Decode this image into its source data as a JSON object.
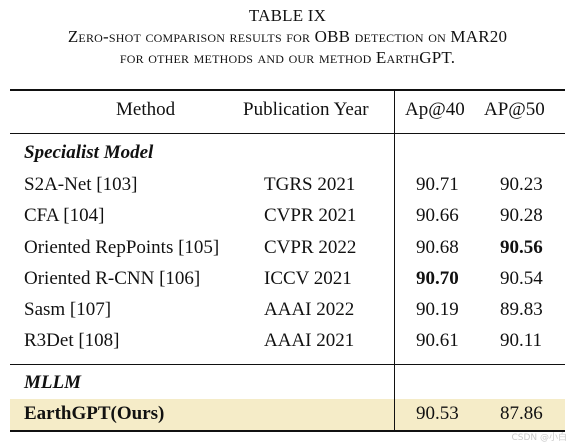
{
  "caption": {
    "label": "TABLE IX",
    "line1": "Zero-shot comparison results for OBB detection on MAR20",
    "line2": "for other methods and our method EarthGPT."
  },
  "headers": {
    "method": "Method",
    "year": "Publication Year",
    "ap40": "Ap@40",
    "ap50": "AP@50"
  },
  "sections": {
    "specialist": "Specialist Model",
    "mllm": "MLLM"
  },
  "rows": [
    {
      "method": "S2A-Net [103]",
      "year": "TGRS 2021",
      "ap40": "90.71",
      "ap50": "90.23"
    },
    {
      "method": "CFA [104]",
      "year": "CVPR 2021",
      "ap40": "90.66",
      "ap50": "90.28"
    },
    {
      "method": "Oriented RepPoints [105]",
      "year": "CVPR 2022",
      "ap40": "90.68",
      "ap50": "90.56"
    },
    {
      "method": "Oriented R-CNN [106]",
      "year": "ICCV 2021",
      "ap40": "90.70",
      "ap50": "90.54"
    },
    {
      "method": "Sasm [107]",
      "year": "AAAI 2022",
      "ap40": "90.19",
      "ap50": "89.83"
    },
    {
      "method": "R3Det [108]",
      "year": "AAAI 2021",
      "ap40": "90.61",
      "ap50": "90.11"
    }
  ],
  "ours": {
    "method": "EarthGPT(Ours)",
    "year": "",
    "ap40": "90.53",
    "ap50": "87.86"
  },
  "highlight_color": "#f5ecc8",
  "watermark": "CSDN @小白"
}
